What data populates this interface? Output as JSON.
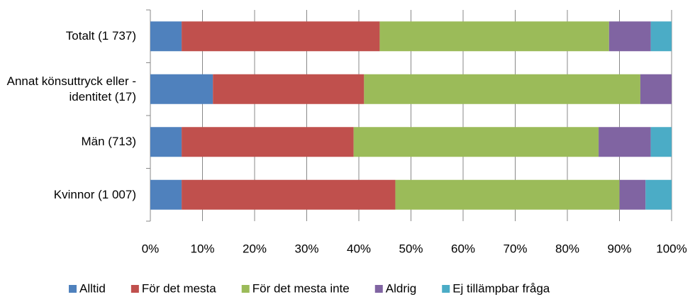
{
  "chart_data": {
    "type": "stacked_barh",
    "categories": [
      "Totalt (1 737)",
      "Annat könsuttryck eller -identitet (17)",
      "Män (713)",
      "Kvinnor (1 007)"
    ],
    "series": [
      {
        "name": "Alltid",
        "color": "#4f81bd",
        "values": [
          6,
          12,
          6,
          6
        ]
      },
      {
        "name": "För det mesta",
        "color": "#c0504d",
        "values": [
          38,
          29,
          33,
          41
        ]
      },
      {
        "name": "För det mesta inte",
        "color": "#9bbb59",
        "values": [
          44,
          53,
          47,
          43
        ]
      },
      {
        "name": "Aldrig",
        "color": "#8064a2",
        "values": [
          8,
          6,
          10,
          5
        ]
      },
      {
        "name": "Ej tillämpbar fråga",
        "color": "#4bacc6",
        "values": [
          4,
          0,
          4,
          5
        ]
      }
    ],
    "xlim": [
      0,
      100
    ],
    "xticks": [
      {
        "value": 0,
        "label": "0%"
      },
      {
        "value": 10,
        "label": "10%"
      },
      {
        "value": 20,
        "label": "20%"
      },
      {
        "value": 30,
        "label": "30%"
      },
      {
        "value": 40,
        "label": "40%"
      },
      {
        "value": 50,
        "label": "50%"
      },
      {
        "value": 60,
        "label": "60%"
      },
      {
        "value": 70,
        "label": "70%"
      },
      {
        "value": 80,
        "label": "80%"
      },
      {
        "value": 90,
        "label": "90%"
      },
      {
        "value": 100,
        "label": "100%"
      }
    ],
    "grid": true,
    "legend": "bottom"
  }
}
